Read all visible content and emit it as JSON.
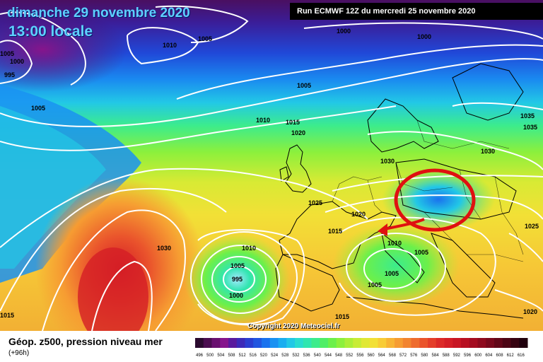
{
  "header": {
    "date": "dimanche 29 novembre 2020",
    "time": "13:00 locale",
    "run": "Run ECMWF 12Z du mercredi 25 novembre 2020"
  },
  "footer": {
    "product": "Géop. z500, pression niveau mer",
    "lead": "(+96h)",
    "copyright": "Copyright 2020 Meteociel.fr"
  },
  "isobar_labels": [
    "1010",
    "1005",
    "1000",
    "995",
    "1000",
    "1005",
    "1000",
    "1005",
    "1005",
    "1010",
    "1015",
    "1020",
    "1030",
    "1030",
    "1035",
    "1035",
    "1025",
    "1020",
    "1015",
    "1030",
    "1010",
    "1005",
    "1005",
    "1005",
    "1005",
    "1000",
    "995",
    "1010",
    "1015",
    "1015",
    "1025",
    "1020"
  ],
  "legend": {
    "colors": [
      "#2a0a2e",
      "#4b0d50",
      "#6a1070",
      "#86158c",
      "#5a1a9e",
      "#3d2ab8",
      "#2b3ed0",
      "#2256e0",
      "#1a72ee",
      "#1a92f2",
      "#1aaef0",
      "#22c8e6",
      "#2adcd0",
      "#30e6b0",
      "#3cec8c",
      "#50ee66",
      "#6cf04a",
      "#8cf03c",
      "#acee38",
      "#c8ec36",
      "#e0e834",
      "#f2e036",
      "#f8cc36",
      "#f8b434",
      "#f69c32",
      "#f28430",
      "#ee6c2e",
      "#ea542c",
      "#e43e2a",
      "#dc2a28",
      "#d41e26",
      "#c81624",
      "#b81022",
      "#a40c20",
      "#8e0a1e",
      "#78081c",
      "#620618",
      "#4c0414",
      "#360210",
      "#20000c"
    ],
    "values": [
      "496",
      "500",
      "504",
      "508",
      "512",
      "516",
      "520",
      "524",
      "528",
      "532",
      "536",
      "540",
      "544",
      "548",
      "552",
      "556",
      "560",
      "564",
      "568",
      "572",
      "576",
      "580",
      "584",
      "588",
      "592",
      "596",
      "600",
      "604",
      "608",
      "612",
      "616"
    ]
  }
}
